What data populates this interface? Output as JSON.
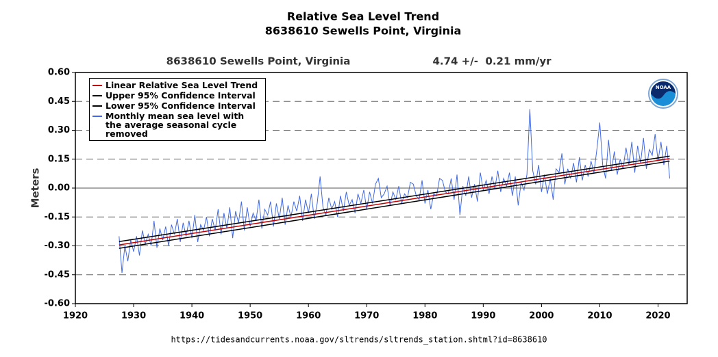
{
  "chart_data": {
    "type": "line",
    "title": "Relative Sea Level Trend",
    "subtitle": "8638610 Sewells Point, Virginia",
    "station_label": "8638610 Sewells Point, Virginia",
    "trend_label": "4.74 +/-  0.21 mm/yr",
    "y_label": "Meters",
    "source_url": "https://tidesandcurrents.noaa.gov/sltrends/sltrends_station.shtml?id=8638610",
    "logo_text": "NOAA",
    "xlim": [
      1920,
      2025
    ],
    "xticks": [
      1920,
      1930,
      1940,
      1950,
      1960,
      1970,
      1980,
      1990,
      2000,
      2010,
      2020
    ],
    "ylim": [
      -0.6,
      0.6
    ],
    "yticks": [
      {
        "value": -0.6,
        "label": "-0.60"
      },
      {
        "value": -0.45,
        "label": "-0.45"
      },
      {
        "value": -0.3,
        "label": "-0.30"
      },
      {
        "value": -0.15,
        "label": "-0.15"
      },
      {
        "value": 0,
        "label": "0.00"
      },
      {
        "value": 0.15,
        "label": "0.15"
      },
      {
        "value": 0.3,
        "label": "0.30"
      },
      {
        "value": 0.45,
        "label": "0.45"
      },
      {
        "value": 0.6,
        "label": "0.60"
      }
    ],
    "grid": true,
    "legend": "upper left",
    "series": [
      {
        "name": "Linear Relative Sea Level Trend",
        "color": "#c00000",
        "x": [
          1927.5,
          2022
        ],
        "values": [
          -0.295,
          0.153
        ]
      },
      {
        "name": "Upper 95% Confidence Interval",
        "color": "#000000",
        "x": [
          1927.5,
          2022
        ],
        "values": [
          -0.278,
          0.166
        ]
      },
      {
        "name": "Lower 95% Confidence Interval",
        "color": "#000000",
        "x": [
          1927.5,
          2022
        ],
        "values": [
          -0.313,
          0.14
        ]
      },
      {
        "name": "Monthly mean sea level with the average seasonal cycle removed",
        "color": "#4169e1",
        "x": [
          1927.5,
          1928,
          1928.5,
          1929,
          1929.5,
          1930,
          1930.5,
          1931,
          1931.5,
          1932,
          1932.5,
          1933,
          1933.5,
          1934,
          1934.5,
          1935,
          1935.5,
          1936,
          1936.5,
          1937,
          1937.5,
          1938,
          1938.5,
          1939,
          1939.5,
          1940,
          1940.5,
          1941,
          1941.5,
          1942,
          1942.5,
          1943,
          1943.5,
          1944,
          1944.5,
          1945,
          1945.5,
          1946,
          1946.5,
          1947,
          1947.5,
          1948,
          1948.5,
          1949,
          1949.5,
          1950,
          1950.5,
          1951,
          1951.5,
          1952,
          1952.5,
          1953,
          1953.5,
          1954,
          1954.5,
          1955,
          1955.5,
          1956,
          1956.5,
          1957,
          1957.5,
          1958,
          1958.5,
          1959,
          1959.5,
          1960,
          1960.5,
          1961,
          1961.5,
          1962,
          1962.5,
          1963,
          1963.5,
          1964,
          1964.5,
          1965,
          1965.5,
          1966,
          1966.5,
          1967,
          1967.5,
          1968,
          1968.5,
          1969,
          1969.5,
          1970,
          1970.5,
          1971,
          1971.5,
          1972,
          1972.5,
          1973,
          1973.5,
          1974,
          1974.5,
          1975,
          1975.5,
          1976,
          1976.5,
          1977,
          1977.5,
          1978,
          1978.5,
          1979,
          1979.5,
          1980,
          1980.5,
          1981,
          1981.5,
          1982,
          1982.5,
          1983,
          1983.5,
          1984,
          1984.5,
          1985,
          1985.5,
          1986,
          1986.5,
          1987,
          1987.5,
          1988,
          1988.5,
          1989,
          1989.5,
          1990,
          1990.5,
          1991,
          1991.5,
          1992,
          1992.5,
          1993,
          1993.5,
          1994,
          1994.5,
          1995,
          1995.5,
          1996,
          1996.5,
          1997,
          1997.5,
          1998,
          1998.5,
          1999,
          1999.5,
          2000,
          2000.5,
          2001,
          2001.5,
          2002,
          2002.5,
          2003,
          2003.5,
          2004,
          2004.5,
          2005,
          2005.5,
          2006,
          2006.5,
          2007,
          2007.5,
          2008,
          2008.5,
          2009,
          2009.5,
          2010,
          2010.5,
          2011,
          2011.5,
          2012,
          2012.5,
          2013,
          2013.5,
          2014,
          2014.5,
          2015,
          2015.5,
          2016,
          2016.5,
          2017,
          2017.5,
          2018,
          2018.5,
          2019,
          2019.5,
          2020,
          2020.5,
          2021,
          2021.5,
          2022
        ],
        "values": [
          -0.25,
          -0.44,
          -0.3,
          -0.38,
          -0.27,
          -0.33,
          -0.25,
          -0.35,
          -0.22,
          -0.29,
          -0.24,
          -0.3,
          -0.17,
          -0.31,
          -0.21,
          -0.27,
          -0.2,
          -0.3,
          -0.19,
          -0.24,
          -0.16,
          -0.28,
          -0.18,
          -0.25,
          -0.17,
          -0.26,
          -0.14,
          -0.28,
          -0.19,
          -0.22,
          -0.15,
          -0.25,
          -0.16,
          -0.22,
          -0.11,
          -0.24,
          -0.13,
          -0.21,
          -0.1,
          -0.26,
          -0.12,
          -0.18,
          -0.07,
          -0.22,
          -0.1,
          -0.2,
          -0.13,
          -0.17,
          -0.06,
          -0.21,
          -0.11,
          -0.14,
          -0.07,
          -0.2,
          -0.08,
          -0.16,
          -0.05,
          -0.19,
          -0.09,
          -0.15,
          -0.07,
          -0.12,
          -0.04,
          -0.17,
          -0.06,
          -0.13,
          -0.03,
          -0.16,
          -0.08,
          0.06,
          -0.1,
          -0.14,
          -0.05,
          -0.11,
          -0.07,
          -0.15,
          -0.04,
          -0.12,
          -0.02,
          -0.09,
          -0.06,
          -0.13,
          -0.03,
          -0.08,
          -0.01,
          -0.11,
          -0.02,
          -0.08,
          0.02,
          0.05,
          -0.05,
          -0.03,
          0.01,
          -0.09,
          -0.02,
          -0.06,
          0.01,
          -0.08,
          -0.03,
          -0.05,
          0.03,
          0.02,
          -0.04,
          -0.06,
          0.04,
          -0.08,
          -0.01,
          -0.11,
          -0.03,
          -0.04,
          0.05,
          0.04,
          -0.02,
          -0.03,
          0.05,
          -0.06,
          0.07,
          -0.14,
          0.01,
          -0.04,
          0.06,
          -0.05,
          0.02,
          -0.07,
          0.08,
          -0.01,
          0.04,
          -0.03,
          0.06,
          0.0,
          0.09,
          -0.02,
          0.05,
          0.01,
          0.08,
          -0.04,
          0.06,
          -0.09,
          0.03,
          -0.01,
          0.07,
          0.41,
          0.09,
          0.02,
          0.12,
          -0.02,
          0.07,
          -0.03,
          0.05,
          -0.06,
          0.1,
          0.08,
          0.18,
          0.02,
          0.1,
          0.05,
          0.13,
          0.03,
          0.16,
          0.04,
          0.12,
          0.06,
          0.14,
          0.08,
          0.2,
          0.34,
          0.12,
          0.05,
          0.25,
          0.09,
          0.19,
          0.07,
          0.15,
          0.1,
          0.21,
          0.12,
          0.24,
          0.08,
          0.22,
          0.13,
          0.26,
          0.1,
          0.2,
          0.17,
          0.28,
          0.14,
          0.24,
          0.12,
          0.22,
          0.05
        ]
      }
    ]
  }
}
